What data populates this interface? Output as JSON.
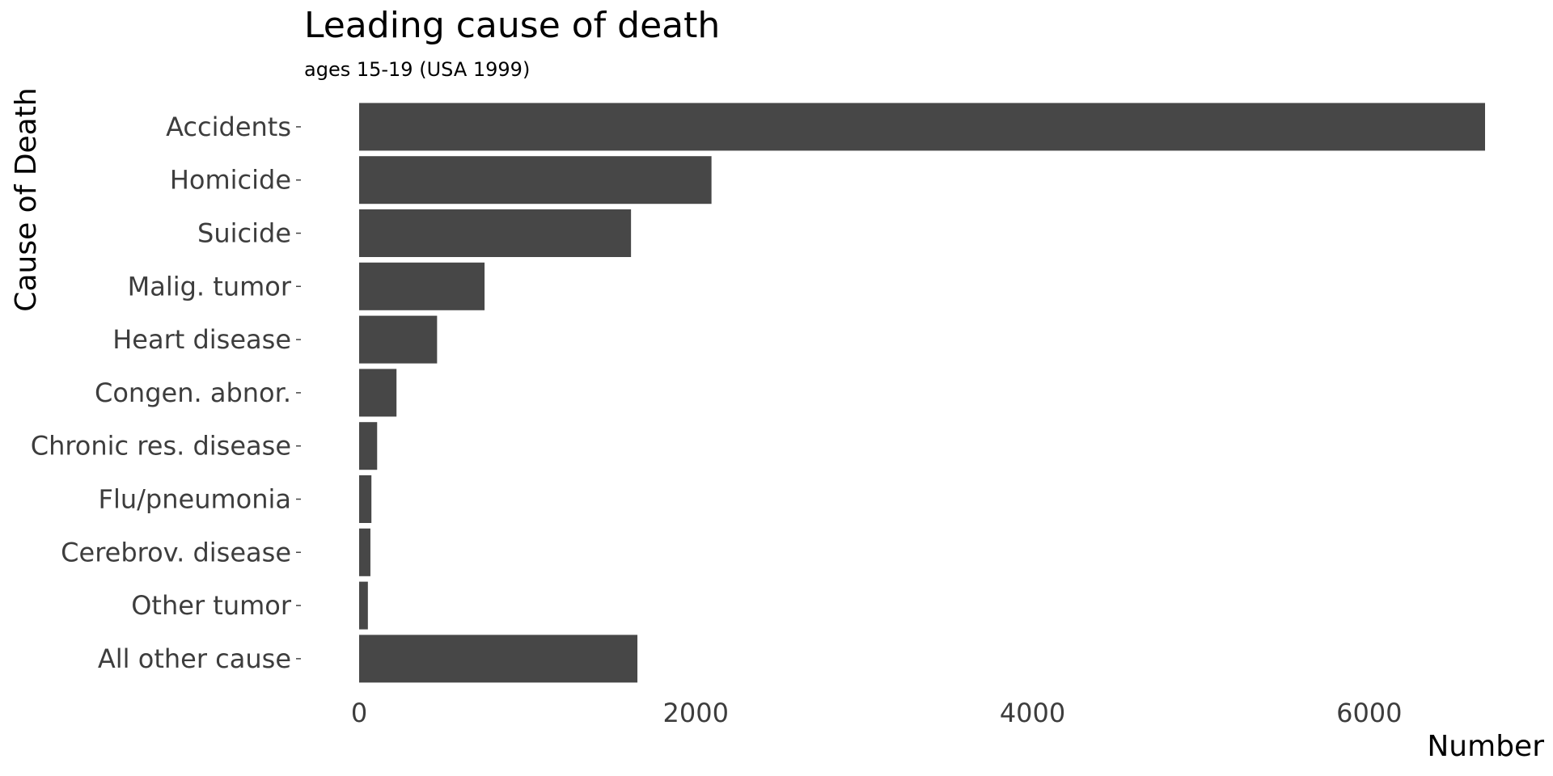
{
  "chart_data": {
    "type": "bar",
    "orientation": "horizontal",
    "title": "Leading cause of death",
    "subtitle": "ages 15-19 (USA 1999)",
    "xlabel": "Number",
    "ylabel": "Cause of Death",
    "categories": [
      "Accidents",
      "Homicide",
      "Suicide",
      "Malig. tumor",
      "Heart disease",
      "Congen. abnor.",
      "Chronic res. disease",
      "Flu/pneumonia",
      "Cerebrov. disease",
      "Other tumor",
      "All other cause"
    ],
    "values": [
      6688,
      2093,
      1615,
      745,
      463,
      222,
      107,
      73,
      67,
      52,
      1653
    ],
    "xlim": [
      0,
      6688
    ],
    "xticks": [
      0,
      2000,
      4000,
      6000
    ],
    "xtick_labels": [
      "0",
      "2000",
      "4000",
      "6000"
    ],
    "grid": false,
    "legend": "none",
    "bar_color": "#474747",
    "background": "#ffffff"
  }
}
